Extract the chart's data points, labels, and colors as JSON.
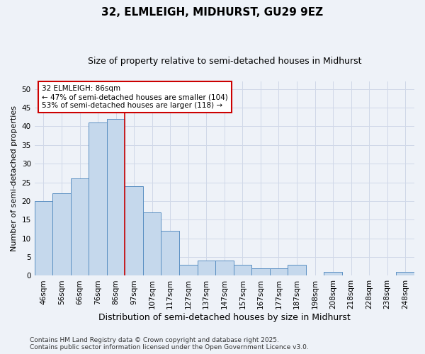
{
  "title": "32, ELMLEIGH, MIDHURST, GU29 9EZ",
  "subtitle": "Size of property relative to semi-detached houses in Midhurst",
  "xlabel": "Distribution of semi-detached houses by size in Midhurst",
  "ylabel": "Number of semi-detached properties",
  "categories": [
    "46sqm",
    "56sqm",
    "66sqm",
    "76sqm",
    "86sqm",
    "97sqm",
    "107sqm",
    "117sqm",
    "127sqm",
    "137sqm",
    "147sqm",
    "157sqm",
    "167sqm",
    "177sqm",
    "187sqm",
    "198sqm",
    "208sqm",
    "218sqm",
    "228sqm",
    "238sqm",
    "248sqm"
  ],
  "values": [
    20,
    22,
    26,
    41,
    42,
    24,
    17,
    12,
    3,
    4,
    4,
    3,
    2,
    2,
    3,
    0,
    1,
    0,
    0,
    0,
    1
  ],
  "bar_color": "#c5d8ec",
  "bar_edge_color": "#5a8fc2",
  "vline_index": 4,
  "vline_color": "#cc0000",
  "annotation_text": "32 ELMLEIGH: 86sqm\n← 47% of semi-detached houses are smaller (104)\n53% of semi-detached houses are larger (118) →",
  "annotation_box_color": "#ffffff",
  "annotation_box_edge": "#cc0000",
  "ylim": [
    0,
    52
  ],
  "yticks": [
    0,
    5,
    10,
    15,
    20,
    25,
    30,
    35,
    40,
    45,
    50
  ],
  "grid_color": "#d0d8e8",
  "bg_color": "#eef2f8",
  "footer": "Contains HM Land Registry data © Crown copyright and database right 2025.\nContains public sector information licensed under the Open Government Licence v3.0.",
  "title_fontsize": 11,
  "subtitle_fontsize": 9,
  "xlabel_fontsize": 9,
  "ylabel_fontsize": 8,
  "tick_fontsize": 7.5,
  "annotation_fontsize": 7.5,
  "footer_fontsize": 6.5
}
